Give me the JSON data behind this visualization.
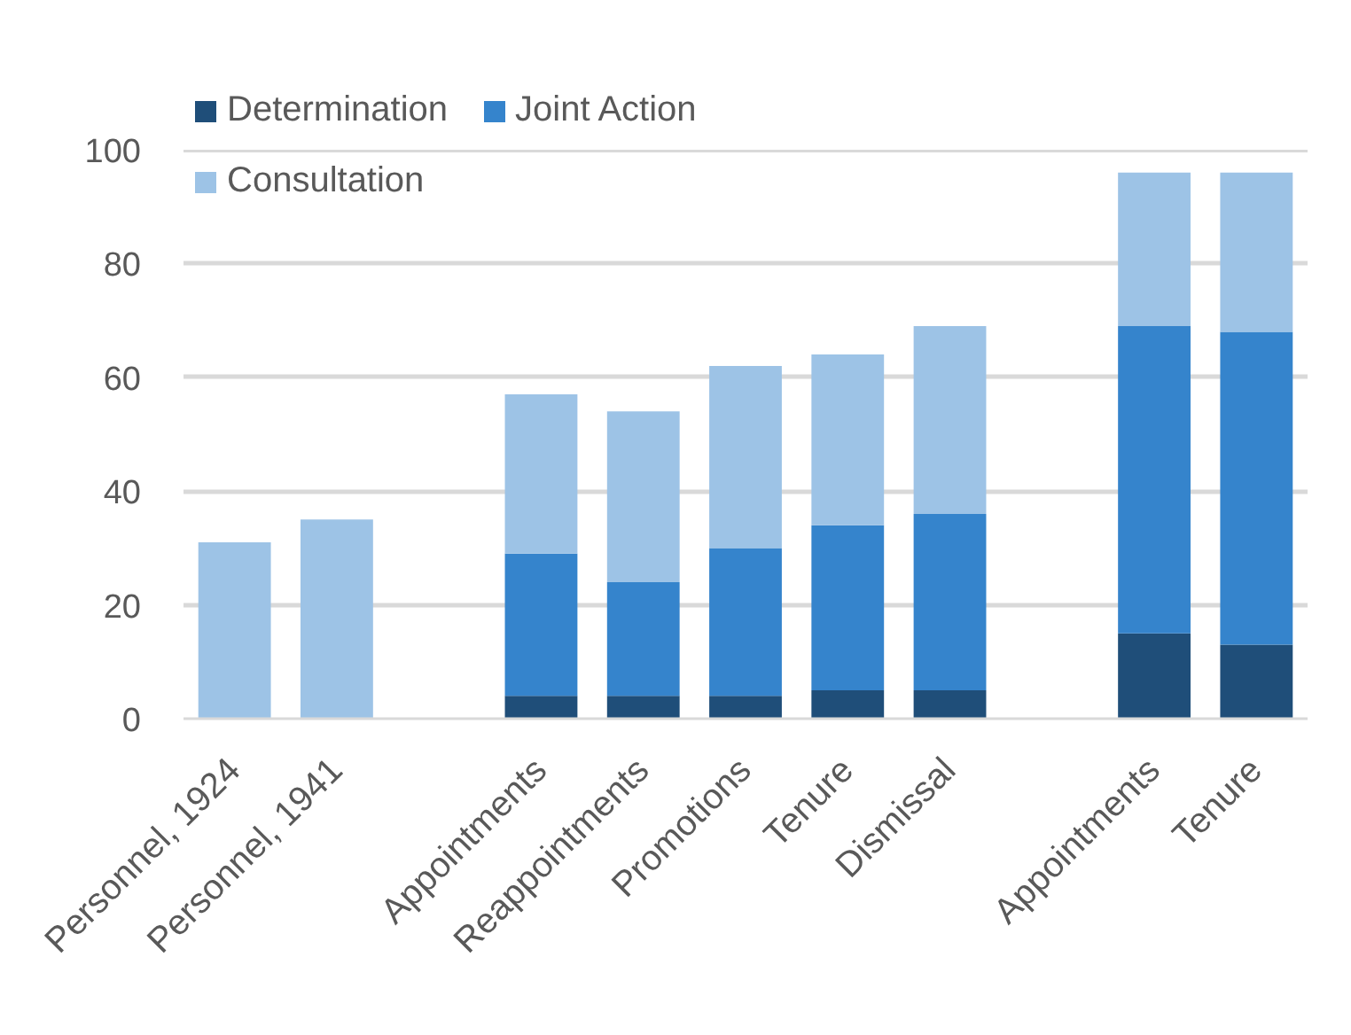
{
  "chart_data": {
    "type": "bar",
    "stacked": true,
    "categories": [
      "Personnel, 1924",
      "Personnel, 1941",
      null,
      "Appointments",
      "Reappointments",
      "Promotions",
      "Tenure",
      "Dismissal",
      null,
      "Appointments",
      "Tenure"
    ],
    "series": [
      {
        "name": "Determination",
        "color": "#1f4e79",
        "values": [
          null,
          null,
          null,
          4,
          4,
          4,
          5,
          5,
          null,
          15,
          13
        ]
      },
      {
        "name": "Joint Action",
        "color": "#3584cc",
        "values": [
          null,
          null,
          null,
          25,
          20,
          26,
          29,
          31,
          null,
          54,
          55
        ]
      },
      {
        "name": "Consultation",
        "color": "#9dc3e6",
        "values": [
          31,
          35,
          null,
          28,
          30,
          32,
          30,
          33,
          null,
          27,
          28
        ]
      }
    ],
    "ylim": [
      0,
      100
    ],
    "yticks": [
      0,
      20,
      40,
      60,
      80,
      100
    ],
    "grid": "y",
    "legend": "top left"
  }
}
